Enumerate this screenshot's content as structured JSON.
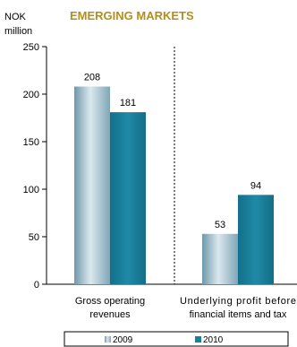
{
  "chart_data": {
    "type": "bar",
    "title": "EMERGING MARKETS",
    "ylabel_line1": "NOK",
    "ylabel_line2": "million",
    "ylim": [
      0,
      250
    ],
    "yticks": [
      "0",
      "50",
      "100",
      "150",
      "200",
      "250"
    ],
    "categories": [
      {
        "line1": "Gross operating",
        "line2": "revenues"
      },
      {
        "line1": "Underlying profit before",
        "line2": "financial items and tax"
      }
    ],
    "series": [
      {
        "name": "2009",
        "values": [
          208,
          53
        ],
        "color": "#8fb4c4"
      },
      {
        "name": "2010",
        "values": [
          181,
          94
        ],
        "color": "#1a7f9a"
      }
    ],
    "data_labels": [
      [
        "208",
        "53"
      ],
      [
        "181",
        "94"
      ]
    ],
    "title_color": "#b38f1a",
    "legend_position": "bottom",
    "grid": false
  }
}
